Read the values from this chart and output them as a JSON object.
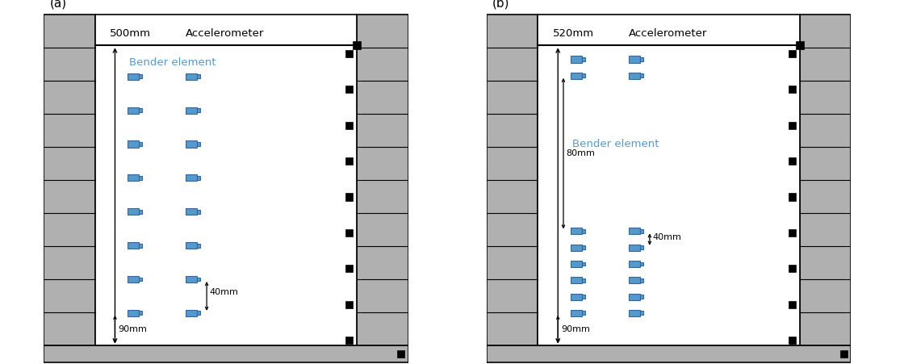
{
  "fig_width": 11.2,
  "fig_height": 4.51,
  "bg_color": "#ffffff",
  "gray_color": "#b0b0b0",
  "blue_color": "#5599cc",
  "black_color": "#000000",
  "white_color": "#ffffff",
  "panels": [
    {
      "label": "(a)",
      "height_text": "500mm",
      "spacing_label": "40mm",
      "bottom_label": "90mm",
      "middle_label": null,
      "accel_label": "Accelerometer",
      "bender_label": "Bender element",
      "n_bender_rows": 8,
      "n_accel_rows": 9,
      "extra_top_benders": false
    },
    {
      "label": "(b)",
      "height_text": "520mm",
      "spacing_label": "40mm",
      "bottom_label": "90mm",
      "middle_label": "80mm",
      "accel_label": "Accelerometer",
      "bender_label": "Bender element",
      "n_bender_rows": 8,
      "n_accel_rows": 9,
      "extra_top_benders": true
    }
  ]
}
